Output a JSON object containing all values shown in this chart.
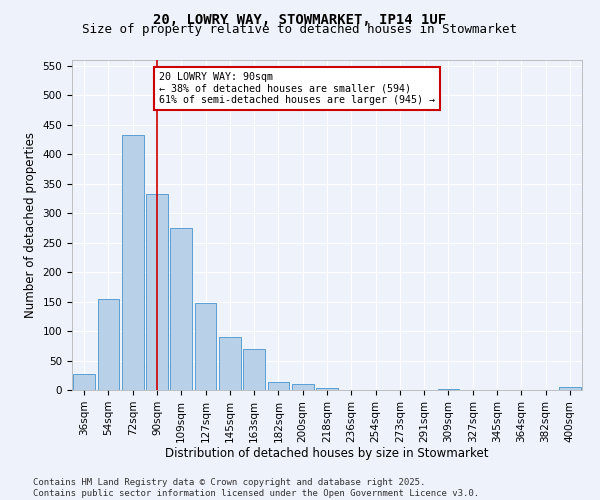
{
  "title": "20, LOWRY WAY, STOWMARKET, IP14 1UF",
  "subtitle": "Size of property relative to detached houses in Stowmarket",
  "xlabel": "Distribution of detached houses by size in Stowmarket",
  "ylabel": "Number of detached properties",
  "categories": [
    "36sqm",
    "54sqm",
    "72sqm",
    "90sqm",
    "109sqm",
    "127sqm",
    "145sqm",
    "163sqm",
    "182sqm",
    "200sqm",
    "218sqm",
    "236sqm",
    "254sqm",
    "273sqm",
    "291sqm",
    "309sqm",
    "327sqm",
    "345sqm",
    "364sqm",
    "382sqm",
    "400sqm"
  ],
  "values": [
    28,
    155,
    433,
    333,
    275,
    148,
    90,
    70,
    13,
    11,
    4,
    0,
    0,
    0,
    0,
    2,
    0,
    0,
    0,
    0,
    5
  ],
  "bar_color": "#b8d0e8",
  "bar_edge_color": "#5a9fd4",
  "vline_x": 3,
  "vline_color": "#cc0000",
  "annotation_box_text": "20 LOWRY WAY: 90sqm\n← 38% of detached houses are smaller (594)\n61% of semi-detached houses are larger (945) →",
  "annotation_box_color": "#cc0000",
  "ylim": [
    0,
    560
  ],
  "yticks": [
    0,
    50,
    100,
    150,
    200,
    250,
    300,
    350,
    400,
    450,
    500,
    550
  ],
  "background_color": "#eef2fa",
  "grid_color": "#ffffff",
  "footer_text": "Contains HM Land Registry data © Crown copyright and database right 2025.\nContains public sector information licensed under the Open Government Licence v3.0.",
  "title_fontsize": 10,
  "subtitle_fontsize": 9,
  "axis_label_fontsize": 8.5,
  "tick_fontsize": 7.5,
  "footer_fontsize": 6.5
}
